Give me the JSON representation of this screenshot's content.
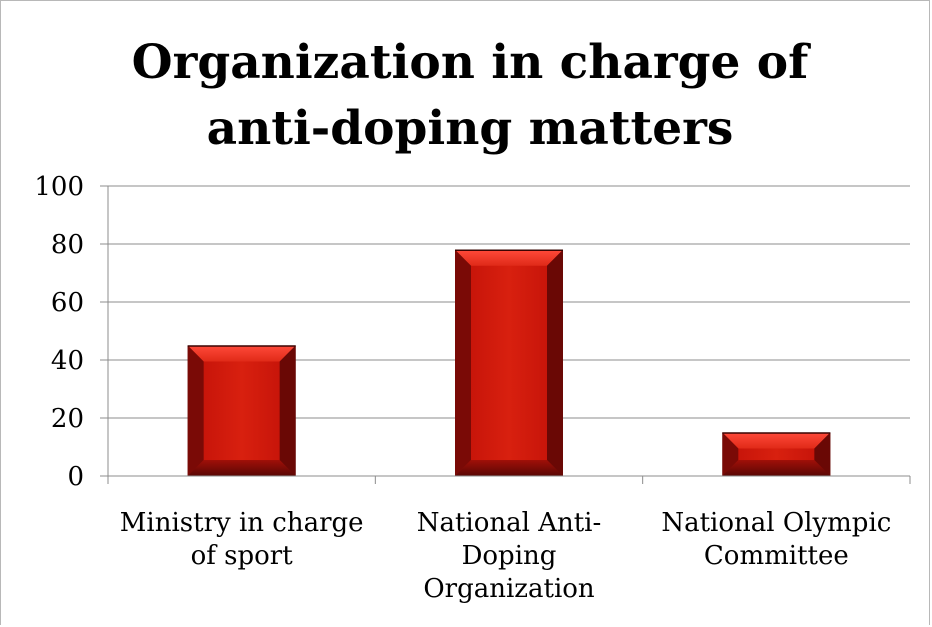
{
  "chart_data": {
    "type": "bar",
    "title": "Organization in charge of anti-doping matters",
    "xlabel": "",
    "ylabel": "",
    "categories": [
      "Ministry in charge of sport",
      "National Anti-Doping Organization",
      "National Olympic Committee"
    ],
    "category_lines": [
      [
        "Ministry in charge",
        "of sport"
      ],
      [
        "National Anti-",
        "Doping",
        "Organization"
      ],
      [
        "National Olympic",
        "Committee"
      ]
    ],
    "values": [
      45,
      78,
      15
    ],
    "ylim": [
      0,
      100
    ],
    "yticks": [
      0,
      20,
      40,
      60,
      80,
      100
    ],
    "grid": true,
    "legend": "none",
    "bar_color": "#c8150a",
    "bar_highlight": "#ff4a3a",
    "bar_shadow": "#5a0705",
    "grid_color": "#8c8c8c"
  }
}
